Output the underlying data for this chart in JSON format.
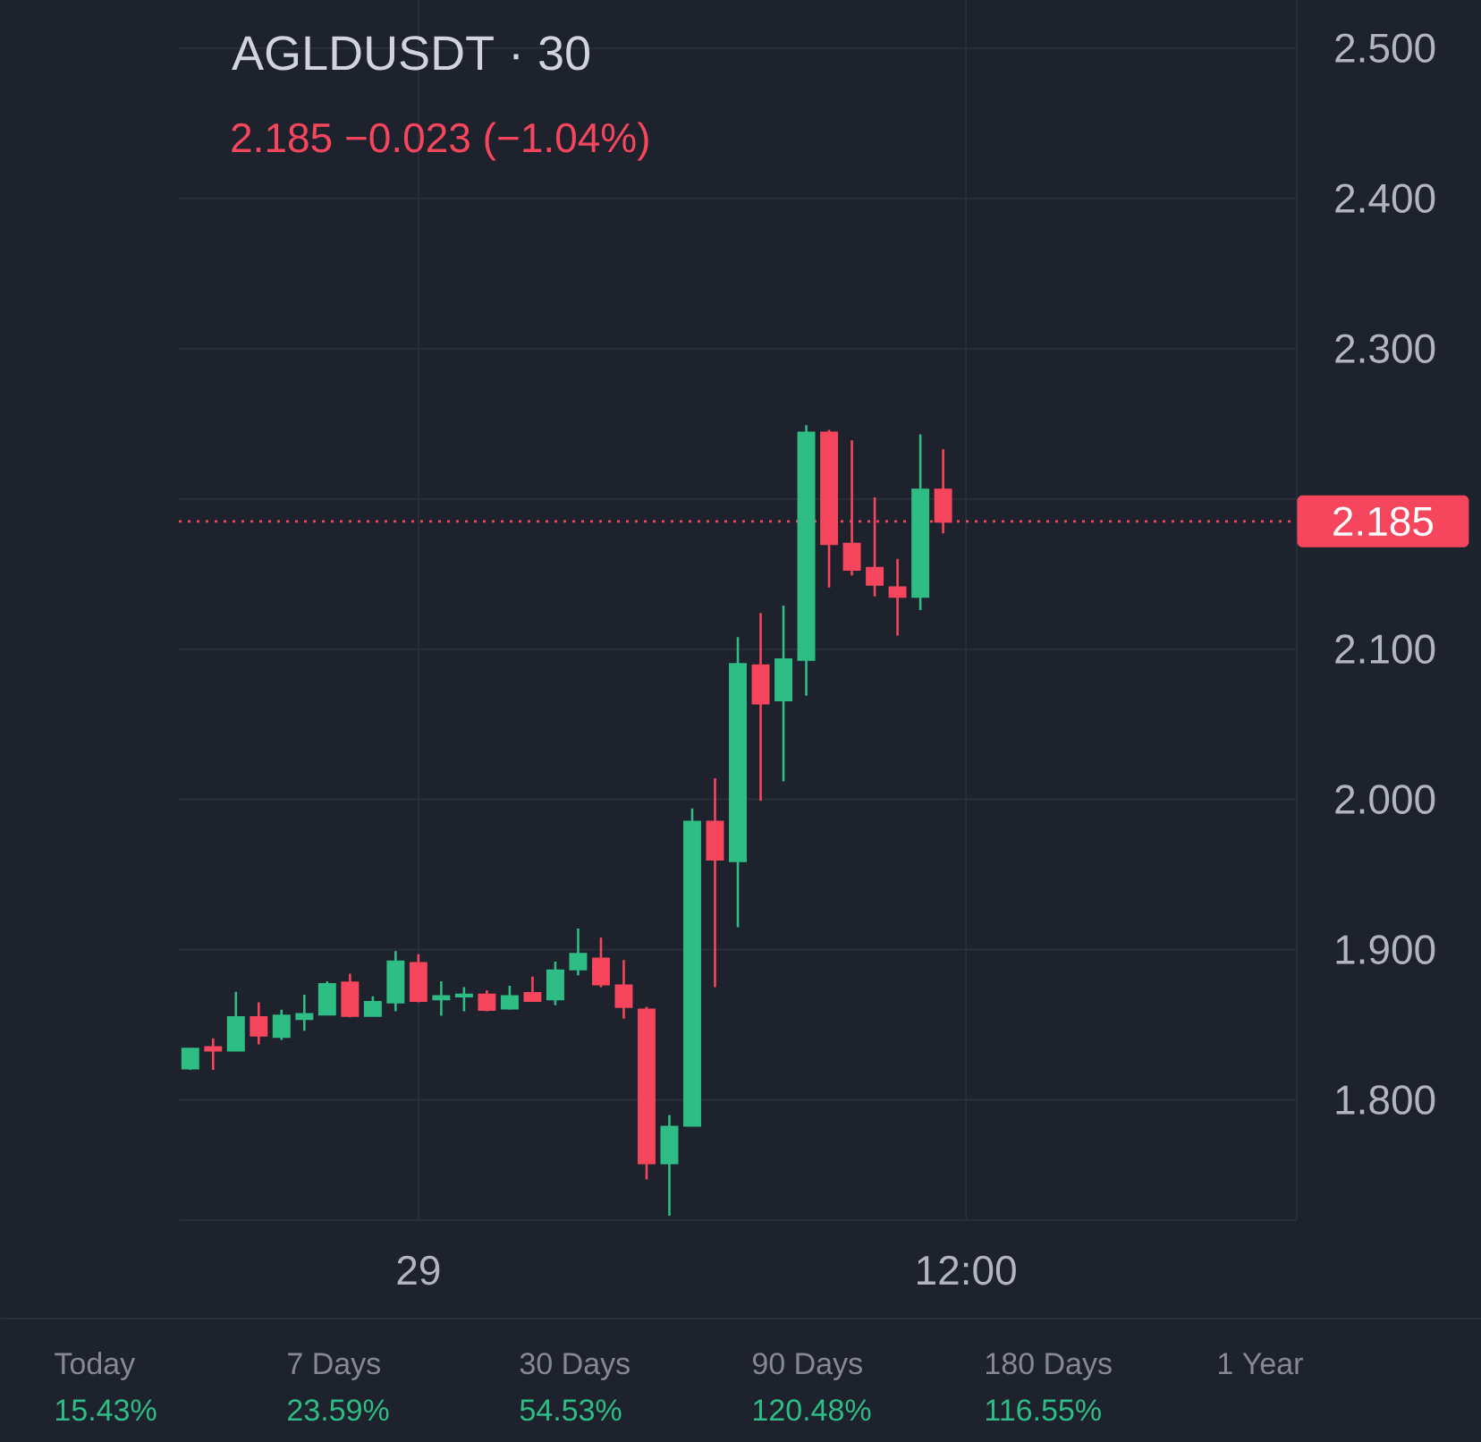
{
  "chart_data": {
    "type": "candlestick",
    "title": "AGLDUSDT · 30",
    "subtitle": "2.185  −0.023 (−1.04%)",
    "categories": [
      null,
      null,
      null,
      null,
      null,
      null,
      null,
      null,
      null,
      null,
      "29",
      null,
      null,
      null,
      null,
      null,
      null,
      null,
      null,
      null,
      null,
      null,
      null,
      null,
      null,
      null,
      null,
      null,
      null,
      null,
      null,
      null,
      null,
      null,
      "12:00",
      null,
      null,
      null,
      null,
      null,
      null,
      null,
      null,
      null,
      null,
      null,
      null,
      null,
      null
    ],
    "ohlc": [
      [
        1.821,
        1.834,
        1.82,
        1.834
      ],
      [
        1.835,
        1.841,
        1.82,
        1.833
      ],
      [
        1.833,
        1.872,
        1.833,
        1.855
      ],
      [
        1.855,
        1.865,
        1.837,
        1.843
      ],
      [
        1.842,
        1.86,
        1.84,
        1.856
      ],
      [
        1.854,
        1.87,
        1.846,
        1.857
      ],
      [
        1.857,
        1.879,
        1.857,
        1.877
      ],
      [
        1.878,
        1.884,
        1.855,
        1.856
      ],
      [
        1.856,
        1.869,
        1.856,
        1.865
      ],
      [
        1.865,
        1.899,
        1.859,
        1.892
      ],
      [
        1.891,
        1.897,
        1.865,
        1.866
      ],
      [
        1.867,
        1.879,
        1.856,
        1.869
      ],
      [
        1.869,
        1.875,
        1.859,
        1.87
      ],
      [
        1.87,
        1.873,
        1.859,
        1.86
      ],
      [
        1.861,
        1.876,
        1.86,
        1.869
      ],
      [
        1.871,
        1.882,
        1.866,
        1.866
      ],
      [
        1.867,
        1.892,
        1.863,
        1.886
      ],
      [
        1.887,
        1.914,
        1.883,
        1.897
      ],
      [
        1.894,
        1.908,
        1.875,
        1.877
      ],
      [
        1.876,
        1.893,
        1.854,
        1.862
      ],
      [
        1.86,
        1.862,
        1.747,
        1.758
      ],
      [
        1.758,
        1.79,
        1.723,
        1.782
      ],
      [
        1.783,
        1.994,
        1.783,
        1.985
      ],
      [
        1.985,
        2.014,
        1.875,
        1.96
      ],
      [
        1.959,
        2.108,
        1.915,
        2.09
      ],
      [
        2.089,
        2.124,
        1.999,
        2.064
      ],
      [
        2.066,
        2.129,
        2.012,
        2.093
      ],
      [
        2.093,
        2.249,
        2.069,
        2.244
      ],
      [
        2.244,
        2.246,
        2.141,
        2.17
      ],
      [
        2.17,
        2.239,
        2.149,
        2.153
      ],
      [
        2.154,
        2.201,
        2.135,
        2.143
      ],
      [
        2.141,
        2.16,
        2.109,
        2.135
      ],
      [
        2.135,
        2.243,
        2.126,
        2.206
      ],
      [
        2.206,
        2.233,
        2.177,
        2.185
      ],
      null,
      null,
      null,
      null,
      null,
      null,
      null,
      null,
      null,
      null,
      null,
      null,
      null,
      null,
      null
    ],
    "colors": [
      "#2ebd85",
      "#f6465d",
      "#2ebd85",
      "#f6465d",
      "#2ebd85",
      "#2ebd85",
      "#2ebd85",
      "#f6465d",
      "#2ebd85",
      "#2ebd85",
      "#f6465d",
      "#2ebd85",
      "#2ebd85",
      "#f6465d",
      "#2ebd85",
      "#f6465d",
      "#2ebd85",
      "#2ebd85",
      "#f6465d",
      "#f6465d",
      "#f6465d",
      "#2ebd85",
      "#2ebd85",
      "#f6465d",
      "#2ebd85",
      "#f6465d",
      "#2ebd85",
      "#2ebd85",
      "#f6465d",
      "#f6465d",
      "#f6465d",
      "#f6465d",
      "#2ebd85",
      "#f6465d",
      null,
      null,
      null,
      null,
      null,
      null,
      null,
      null,
      null,
      null,
      null,
      null,
      null,
      null,
      null
    ],
    "ylim": [
      1.72,
      2.532
    ],
    "yticks": [
      {
        "value": 1.8,
        "label": "1.800"
      },
      {
        "value": 1.9,
        "label": "1.900"
      },
      {
        "value": 2.0,
        "label": "2.000"
      },
      {
        "value": 2.1,
        "label": "2.100"
      },
      {
        "value": 2.2,
        "label": null
      },
      {
        "value": 2.3,
        "label": "2.300"
      },
      {
        "value": 2.4,
        "label": "2.400"
      },
      {
        "value": 2.5,
        "label": "2.500"
      }
    ],
    "grid": true,
    "ref_lines": [
      {
        "axis": "y",
        "value": 2.185,
        "label": "2.185",
        "color": "#f6465d",
        "line_style": "dotted"
      }
    ],
    "annotations": [
      "Today",
      "15.43%",
      "7 Days",
      "23.59%",
      "30 Days",
      "54.53%",
      "90 Days",
      "120.48%",
      "180 Days",
      "116.55%",
      "1 Year"
    ]
  }
}
